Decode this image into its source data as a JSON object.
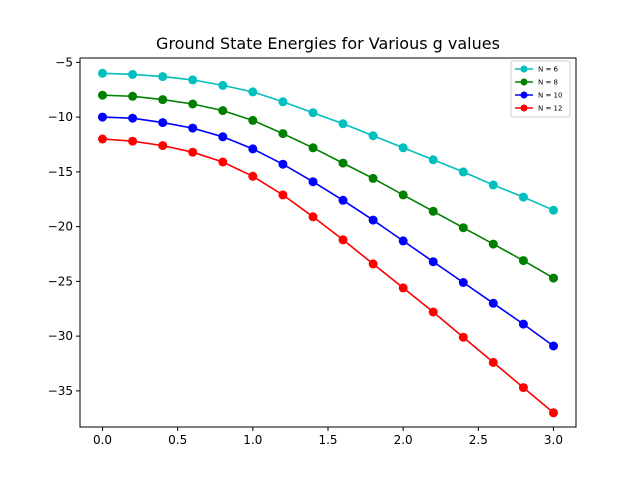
{
  "chart_data": {
    "type": "line",
    "title": "Ground State Energies for Various g values",
    "xlabel": "",
    "ylabel": "",
    "xlim": [
      -0.15,
      3.15
    ],
    "ylim": [
      -38.3,
      -4.6
    ],
    "xticks": [
      0.0,
      0.5,
      1.0,
      1.5,
      2.0,
      2.5,
      3.0
    ],
    "xtick_labels": [
      "0.0",
      "0.5",
      "1.0",
      "1.5",
      "2.0",
      "2.5",
      "3.0"
    ],
    "yticks": [
      -35,
      -30,
      -25,
      -20,
      -15,
      -10,
      -5
    ],
    "ytick_labels": [
      "−35",
      "−30",
      "−25",
      "−20",
      "−15",
      "−10",
      "−5"
    ],
    "grid": false,
    "legend_position": "top-right",
    "x": [
      0.0,
      0.2,
      0.4,
      0.6,
      0.8,
      1.0,
      1.2,
      1.4,
      1.6,
      1.8,
      2.0,
      2.2,
      2.4,
      2.6,
      2.8,
      3.0
    ],
    "series": [
      {
        "name": "N = 6",
        "color": "#00bfbf",
        "values": [
          -6.0,
          -6.1,
          -6.3,
          -6.6,
          -7.1,
          -7.7,
          -8.6,
          -9.6,
          -10.6,
          -11.7,
          -12.8,
          -13.9,
          -15.0,
          -16.2,
          -17.3,
          -18.5
        ]
      },
      {
        "name": "N = 8",
        "color": "#008000",
        "values": [
          -8.0,
          -8.1,
          -8.4,
          -8.8,
          -9.4,
          -10.3,
          -11.5,
          -12.8,
          -14.2,
          -15.6,
          -17.1,
          -18.6,
          -20.1,
          -21.6,
          -23.1,
          -24.7
        ]
      },
      {
        "name": "N = 10",
        "color": "#0000ff",
        "values": [
          -10.0,
          -10.1,
          -10.5,
          -11.0,
          -11.8,
          -12.9,
          -14.3,
          -15.9,
          -17.6,
          -19.4,
          -21.3,
          -23.2,
          -25.1,
          -27.0,
          -28.9,
          -30.9
        ]
      },
      {
        "name": "N = 12",
        "color": "#ff0000",
        "values": [
          -12.0,
          -12.2,
          -12.6,
          -13.2,
          -14.1,
          -15.4,
          -17.1,
          -19.1,
          -21.2,
          -23.4,
          -25.6,
          -27.8,
          -30.1,
          -32.4,
          -34.7,
          -37.0
        ]
      }
    ]
  }
}
